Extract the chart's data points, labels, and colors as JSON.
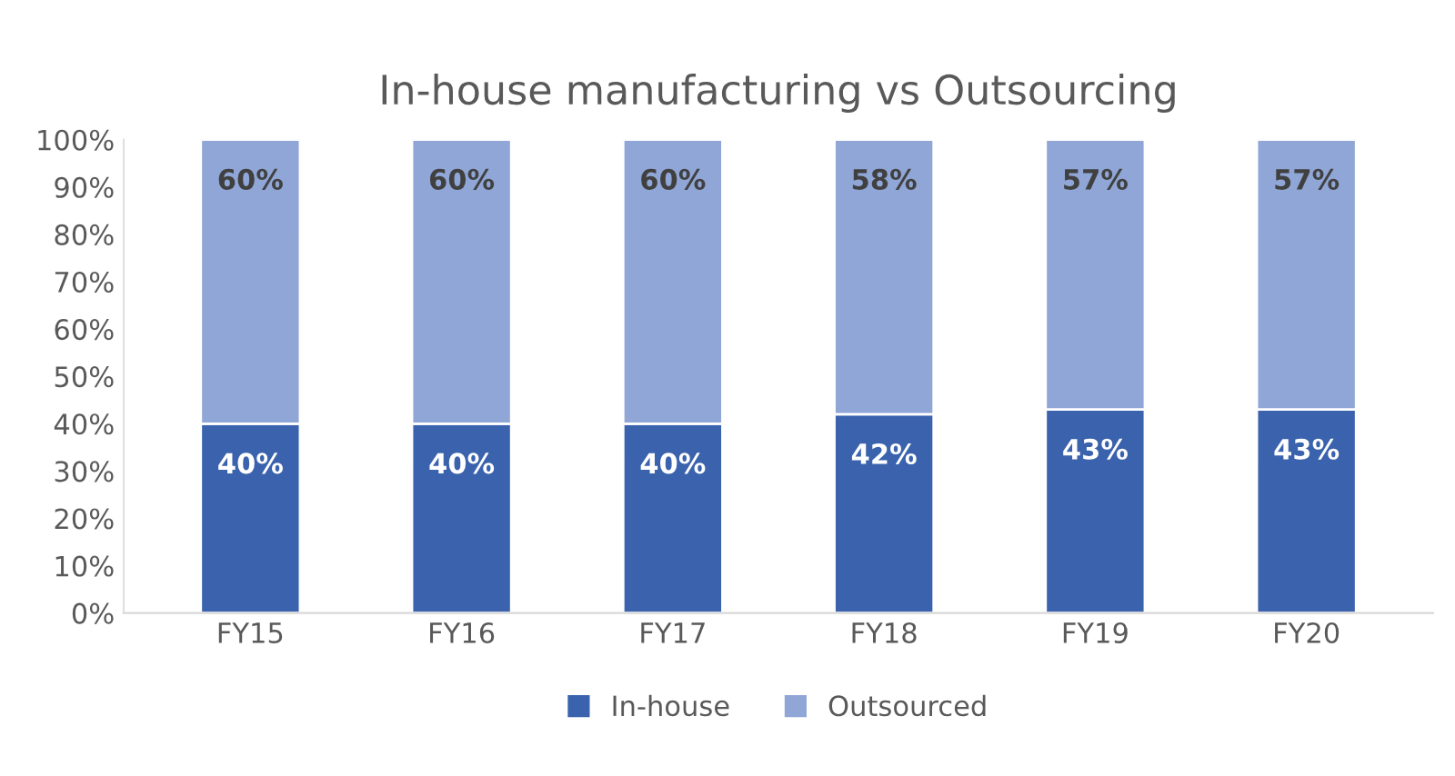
{
  "chart_data": {
    "type": "bar",
    "title": "In-house manufacturing vs Outsourcing",
    "stacked": true,
    "categories": [
      "FY15",
      "FY16",
      "FY17",
      "FY18",
      "FY19",
      "FY20"
    ],
    "series": [
      {
        "name": "In-house",
        "color": "#3a62ad",
        "values": [
          40,
          40,
          40,
          42,
          43,
          43
        ],
        "value_labels": [
          "40%",
          "40%",
          "40%",
          "42%",
          "43%",
          "43%"
        ]
      },
      {
        "name": "Outsourced",
        "color": "#8fa6d6",
        "values": [
          60,
          60,
          60,
          58,
          57,
          57
        ],
        "value_labels": [
          "60%",
          "60%",
          "60%",
          "58%",
          "57%",
          "57%"
        ]
      }
    ],
    "ylim": [
      0,
      100
    ],
    "yticks": [
      {
        "value": 0,
        "label": "0%"
      },
      {
        "value": 10,
        "label": "10%"
      },
      {
        "value": 20,
        "label": "20%"
      },
      {
        "value": 30,
        "label": "30%"
      },
      {
        "value": 40,
        "label": "40%"
      },
      {
        "value": 50,
        "label": "50%"
      },
      {
        "value": 60,
        "label": "60%"
      },
      {
        "value": 70,
        "label": "70%"
      },
      {
        "value": 80,
        "label": "80%"
      },
      {
        "value": 90,
        "label": "90%"
      },
      {
        "value": 100,
        "label": "100%"
      }
    ],
    "grid": false,
    "legend": "bottom"
  }
}
